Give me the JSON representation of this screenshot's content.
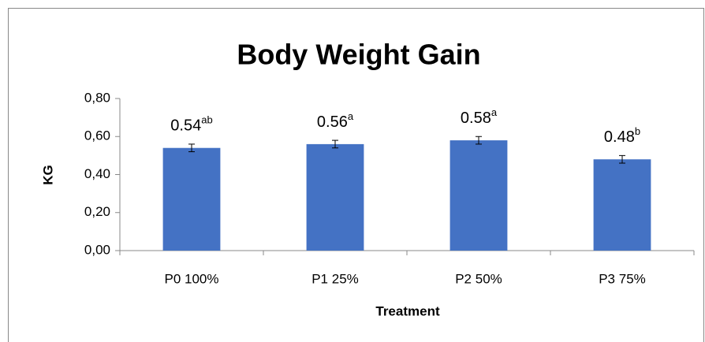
{
  "chart_data": {
    "type": "bar",
    "title": "Body Weight Gain",
    "x_label": "Treatment",
    "y_label": "KG",
    "categories": [
      "P0 100%",
      "P1 25%",
      "P2 50%",
      "P3 75%"
    ],
    "values": [
      0.54,
      0.56,
      0.58,
      0.48
    ],
    "errors": [
      0.02,
      0.02,
      0.02,
      0.02
    ],
    "annotations": [
      "ab",
      "a",
      "a",
      "b"
    ],
    "color": "#4472c4",
    "ylim": [
      0,
      0.8
    ],
    "yticks": [
      {
        "value": 0,
        "label": "0,00"
      },
      {
        "value": 0.2,
        "label": "0,20"
      },
      {
        "value": 0.4,
        "label": "0,40"
      },
      {
        "value": 0.6,
        "label": "0,60"
      },
      {
        "value": 0.8,
        "label": "0,80"
      }
    ],
    "grid": false
  }
}
